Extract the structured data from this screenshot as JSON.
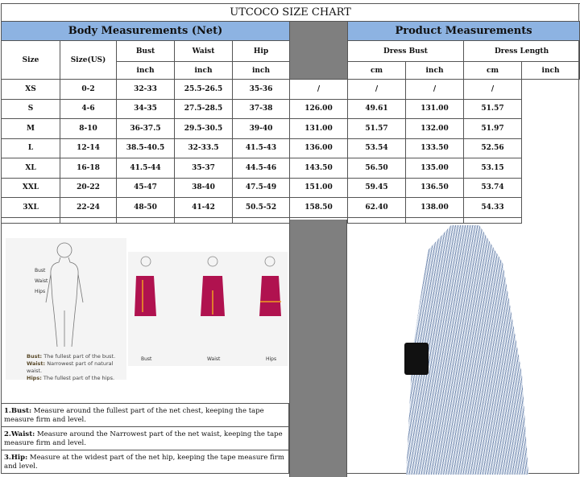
{
  "title": "UTCOCO SIZE CHART",
  "body_header": "Body Measurements (Net)",
  "product_header": "Product Measurements",
  "col_size": "Size",
  "col_size_us": "Size(US)",
  "col_bust": "Bust",
  "col_waist": "Waist",
  "col_hip": "Hip",
  "col_dress_bust": "Dress Bust",
  "col_dress_length": "Dress Length",
  "unit_inch": "inch",
  "unit_cm": "cm",
  "rows": [
    [
      "XS",
      "0-2",
      "32-33",
      "25.5-26.5",
      "35-36",
      "/",
      "/",
      "/",
      "/"
    ],
    [
      "S",
      "4-6",
      "34-35",
      "27.5-28.5",
      "37-38",
      "126.00",
      "49.61",
      "131.00",
      "51.57"
    ],
    [
      "M",
      "8-10",
      "36-37.5",
      "29.5-30.5",
      "39-40",
      "131.00",
      "51.57",
      "132.00",
      "51.97"
    ],
    [
      "L",
      "12-14",
      "38.5-40.5",
      "32-33.5",
      "41.5-43",
      "136.00",
      "53.54",
      "133.50",
      "52.56"
    ],
    [
      "XL",
      "16-18",
      "41.5-44",
      "35-37",
      "44.5-46",
      "143.50",
      "56.50",
      "135.00",
      "53.15"
    ],
    [
      "XXL",
      "20-22",
      "45-47",
      "38-40",
      "47.5-49",
      "151.00",
      "59.45",
      "136.50",
      "53.74"
    ],
    [
      "3XL",
      "22-24",
      "48-50",
      "41-42",
      "50.5-52",
      "158.50",
      "62.40",
      "138.00",
      "54.33"
    ]
  ],
  "figure": {
    "labels": [
      "Bust",
      "Waist",
      "Hips"
    ],
    "captions": [
      {
        "term": "Bust:",
        "text": "The fullest part of the bust."
      },
      {
        "term": "Waist:",
        "text": "Narrowest part of natural waist."
      },
      {
        "term": "Hips:",
        "text": "The fullest part of the hips."
      }
    ],
    "poses": [
      "Bust",
      "Waist",
      "Hips"
    ]
  },
  "notes": [
    {
      "term": "1.Bust:",
      "text": " Measure around the fullest part of the net chest, keeping the tape  measure firm and level."
    },
    {
      "term": "2.Waist:",
      "text": " Measure around the Narrowest part of the net waist, keeping the tape  measure firm and level."
    },
    {
      "term": "3.Hip:",
      "text": " Measure at the widest part of the net hip, keeping the tape measure firm and level."
    }
  ],
  "colors": {
    "header_blue": "#8db3e2",
    "divider_gray": "#7f7f7f",
    "dress_red": "#b0124f"
  }
}
